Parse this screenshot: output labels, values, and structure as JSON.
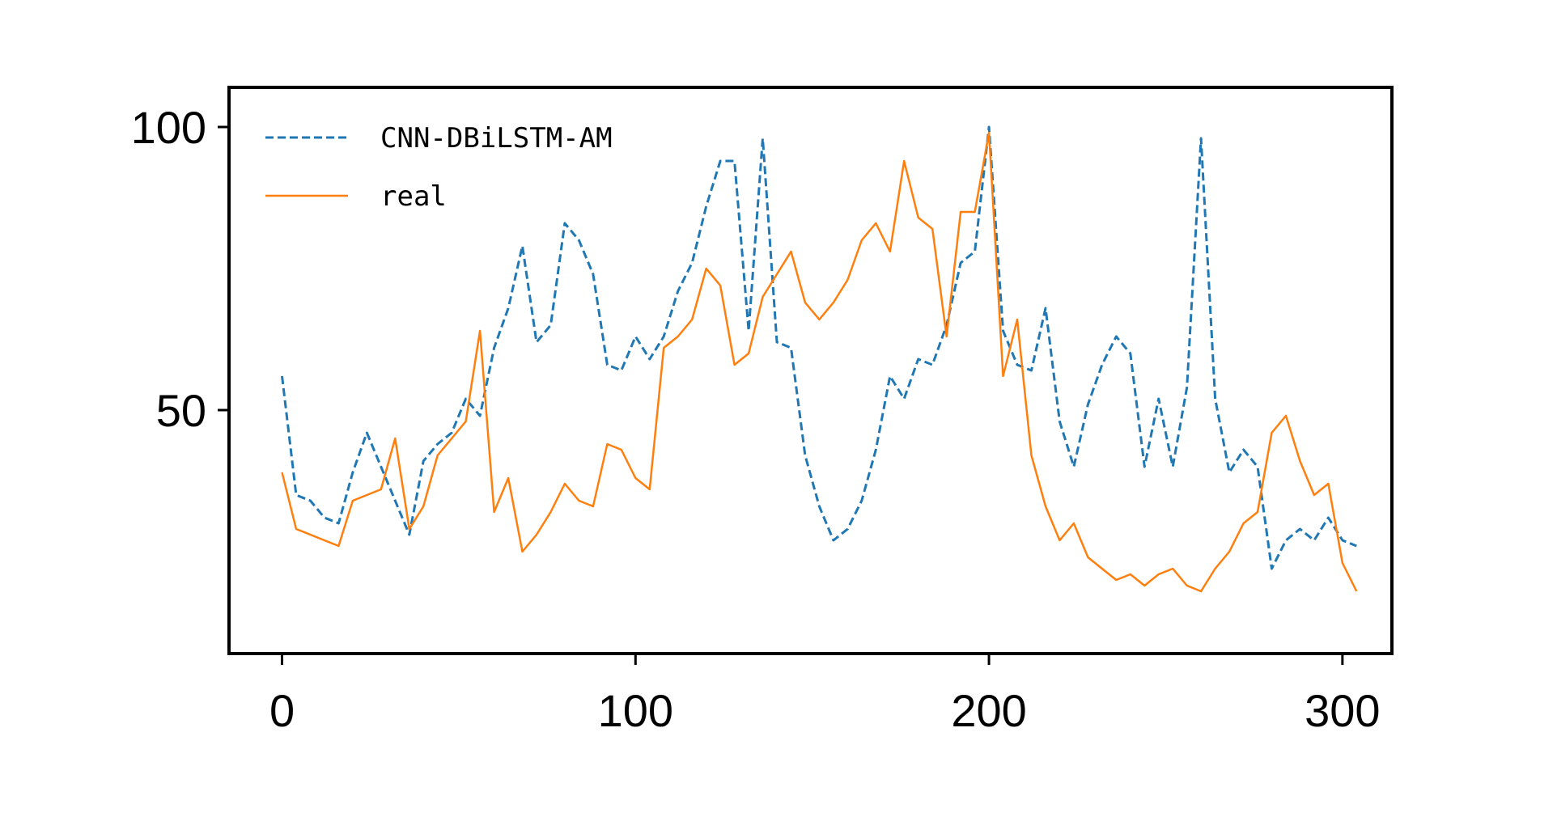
{
  "chart_data": {
    "type": "line",
    "title": "",
    "xlabel": "",
    "ylabel": "",
    "xlim": [
      -15,
      314
    ],
    "ylim": [
      7,
      107
    ],
    "x_ticks": [
      0,
      100,
      200,
      300
    ],
    "y_ticks": [
      50,
      100
    ],
    "x_tick_labels": [
      "0",
      "100",
      "200",
      "300"
    ],
    "y_tick_labels": [
      "50",
      "100"
    ],
    "grid": false,
    "legend_placement": "top-left",
    "x_step": 4,
    "series": [
      {
        "name": "CNN-DBiLSTM-AM",
        "color": "#1f77b4",
        "style": "dashed",
        "values": [
          56,
          35,
          34,
          31,
          30,
          39,
          46,
          40,
          34,
          28,
          41,
          44,
          46,
          52,
          49,
          61,
          68,
          79,
          62,
          65,
          83,
          80,
          74,
          58,
          57,
          63,
          59,
          63,
          71,
          76,
          86,
          94,
          94,
          64,
          98,
          62,
          61,
          42,
          33,
          27,
          29,
          34,
          43,
          56,
          52,
          59,
          58,
          65,
          76,
          78,
          100,
          64,
          58,
          57,
          68,
          48,
          40,
          51,
          58,
          63,
          60,
          40,
          52,
          40,
          54,
          98,
          52,
          39,
          43,
          40,
          22,
          27,
          29,
          27,
          31,
          27,
          26
        ]
      },
      {
        "name": "real",
        "color": "#ff7f0e",
        "style": "solid",
        "values": [
          39,
          29,
          28,
          27,
          26,
          34,
          35,
          36,
          45,
          29,
          33,
          42,
          45,
          48,
          64,
          32,
          38,
          25,
          28,
          32,
          37,
          34,
          33,
          44,
          43,
          38,
          36,
          61,
          63,
          66,
          75,
          72,
          58,
          60,
          70,
          74,
          78,
          69,
          66,
          69,
          73,
          80,
          83,
          78,
          94,
          84,
          82,
          63,
          85,
          85,
          99,
          56,
          66,
          42,
          33,
          27,
          30,
          24,
          22,
          20,
          21,
          19,
          21,
          22,
          19,
          18,
          22,
          25,
          30,
          32,
          46,
          49,
          41,
          35,
          37,
          23,
          18
        ]
      }
    ]
  }
}
